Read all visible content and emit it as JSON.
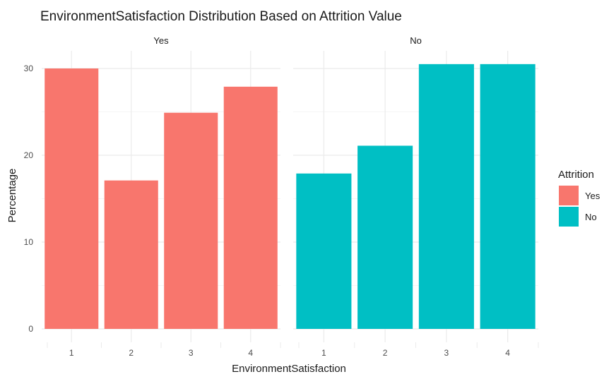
{
  "chart_data": {
    "type": "bar",
    "title": "EnvironmentSatisfaction Distribution Based on Attrition Value",
    "xlabel": "EnvironmentSatisfaction",
    "ylabel": "Percentage",
    "categories": [
      "1",
      "2",
      "3",
      "4"
    ],
    "ylim": [
      0,
      32
    ],
    "yticks": [
      0,
      10,
      20,
      30
    ],
    "grid": true,
    "legend": {
      "title": "Attrition",
      "position": "right",
      "entries": [
        {
          "label": "Yes",
          "color": "#F8766D"
        },
        {
          "label": "No",
          "color": "#00BFC4"
        }
      ]
    },
    "panels": [
      {
        "name": "Yes",
        "color": "#F8766D",
        "values": [
          30.0,
          17.1,
          24.9,
          27.9
        ]
      },
      {
        "name": "No",
        "color": "#00BFC4",
        "values": [
          17.9,
          21.1,
          30.5,
          30.5
        ]
      }
    ]
  }
}
